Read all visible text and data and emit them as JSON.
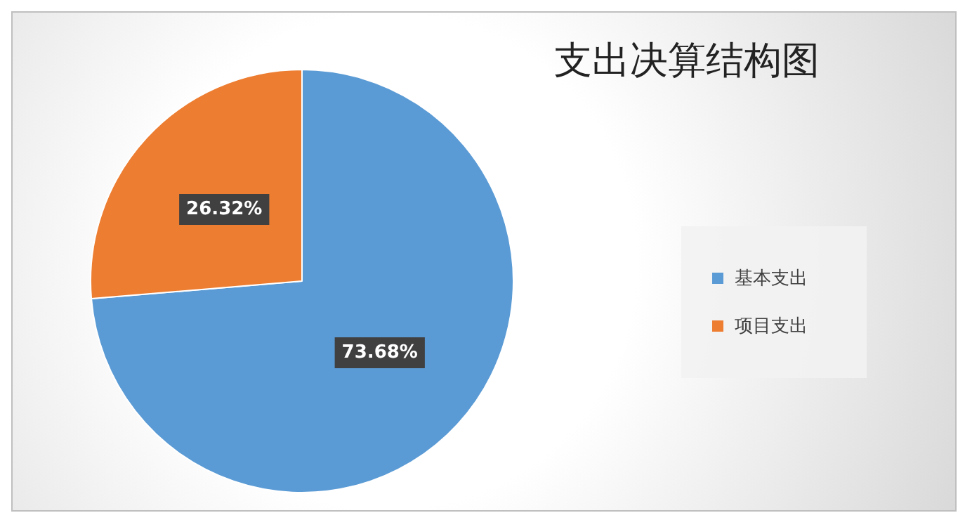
{
  "chart_data": {
    "type": "pie",
    "title": "支出决算结构图",
    "categories": [
      "基本支出",
      "项目支出"
    ],
    "values": [
      73.68,
      26.32
    ],
    "colors": [
      "#5b9bd5",
      "#ed7d31"
    ],
    "value_labels": [
      "73.68%",
      "26.32%"
    ],
    "legend": "right"
  }
}
